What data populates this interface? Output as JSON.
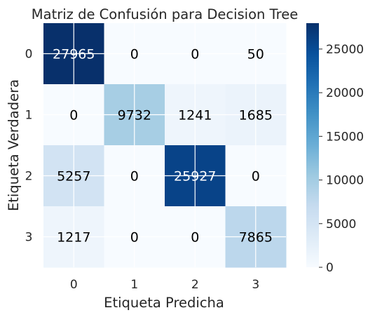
{
  "chart_data": {
    "type": "heatmap",
    "title": "Matriz de Confusión para Decision Tree",
    "xlabel": "Etiqueta Predicha",
    "ylabel": "Etiqueta Verdadera",
    "x_categories": [
      "0",
      "1",
      "2",
      "3"
    ],
    "y_categories": [
      "0",
      "1",
      "2",
      "3"
    ],
    "values": [
      [
        27965,
        0,
        0,
        50
      ],
      [
        0,
        9732,
        1241,
        1685
      ],
      [
        5257,
        0,
        25927,
        0
      ],
      [
        1217,
        0,
        0,
        7865
      ]
    ],
    "colormap": "Blues",
    "vmin": 0,
    "vmax": 27965,
    "colorbar_ticks": [
      "0",
      "5000",
      "10000",
      "15000",
      "20000",
      "25000"
    ],
    "colorbar_tick_values": [
      0,
      5000,
      10000,
      15000,
      20000,
      25000
    ],
    "grid": true
  },
  "colors": {
    "cmap_stops": [
      "#f7fbff",
      "#deebf7",
      "#c6dbef",
      "#9ecae1",
      "#6baed6",
      "#4292c6",
      "#2171b5",
      "#08519c",
      "#08306b"
    ],
    "text_dark": "#000000",
    "text_light": "#ffffff",
    "gridline": "#ffffff"
  }
}
